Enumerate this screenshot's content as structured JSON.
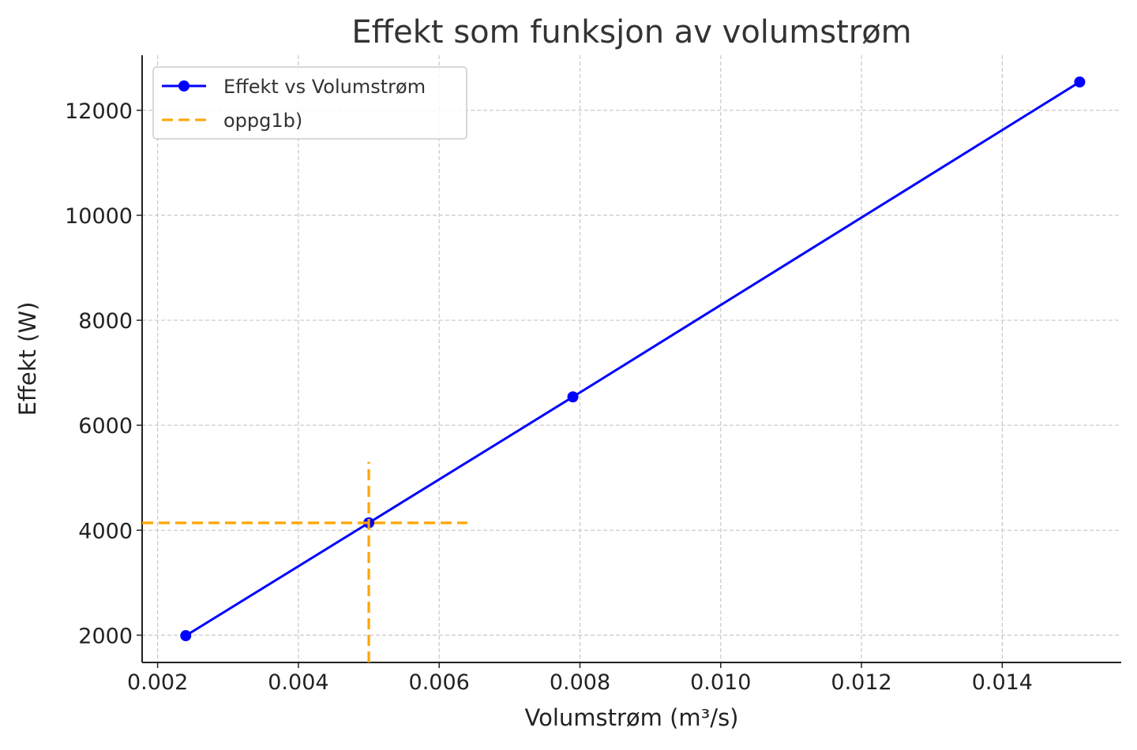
{
  "chart_data": {
    "type": "line",
    "title": "Effekt som funksjon av volumstrøm",
    "xlabel": "Volumstrøm (m³/s)",
    "ylabel": "Effekt (W)",
    "xlim": [
      0.00178,
      0.01569
    ],
    "ylim": [
      1480,
      13050
    ],
    "x_ticks": [
      0.002,
      0.004,
      0.006,
      0.008,
      0.01,
      0.012,
      0.014
    ],
    "x_tick_labels": [
      "0.002",
      "0.004",
      "0.006",
      "0.008",
      "0.010",
      "0.012",
      "0.014"
    ],
    "y_ticks": [
      2000,
      4000,
      6000,
      8000,
      10000,
      12000
    ],
    "y_tick_labels": [
      "2000",
      "4000",
      "6000",
      "8000",
      "10000",
      "12000"
    ],
    "grid": true,
    "legend_position": "top-left",
    "series": [
      {
        "name": "Effekt vs Volumstrøm",
        "color": "#0000ff",
        "style": "solid",
        "marker": "circle",
        "x": [
          0.0024,
          0.005,
          0.0079,
          0.0151
        ],
        "y": [
          1990,
          4140,
          6540,
          12540
        ]
      },
      {
        "name": "oppg1b)",
        "color": "#ffa500",
        "style": "dashed",
        "marker": "none",
        "segments": [
          {
            "x": [
              0.00178,
              0.0064
            ],
            "y": [
              4140,
              4140
            ]
          },
          {
            "x": [
              0.005,
              0.005
            ],
            "y": [
              1480,
              5300
            ]
          }
        ]
      }
    ]
  }
}
